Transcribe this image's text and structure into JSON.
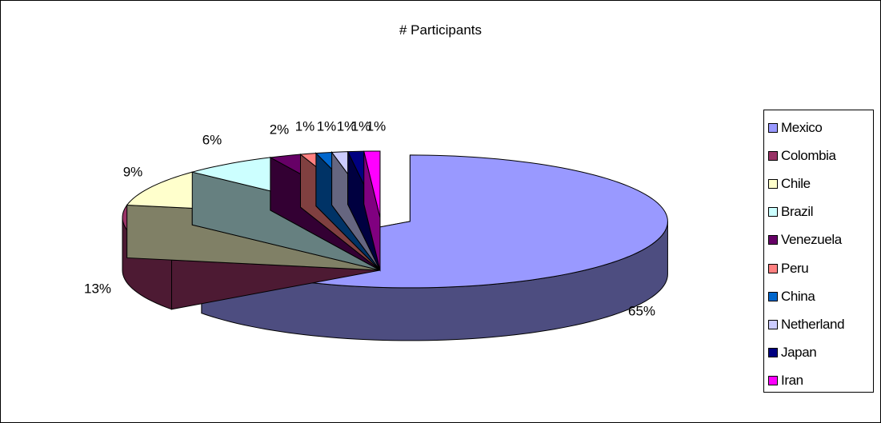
{
  "chart_data": {
    "type": "pie",
    "title": "# Participants",
    "categories": [
      "Mexico",
      "Colombia",
      "Chile",
      "Brazil",
      "Venezuela",
      "Peru",
      "China",
      "Netherland",
      "Japan",
      "Iran"
    ],
    "values": [
      65,
      13,
      9,
      6,
      2,
      1,
      1,
      1,
      1,
      1
    ],
    "data_labels": [
      "65%",
      "13%",
      "9%",
      "6%",
      "2%",
      "1%",
      "1%",
      "1%",
      "1%",
      "1%"
    ],
    "colors": [
      "#9999ff",
      "#993366",
      "#ffffcc",
      "#ccffff",
      "#660066",
      "#ff8080",
      "#0066cc",
      "#ccccff",
      "#000080",
      "#ff00ff"
    ],
    "style": "3d-exploded",
    "legend_position": "right"
  }
}
